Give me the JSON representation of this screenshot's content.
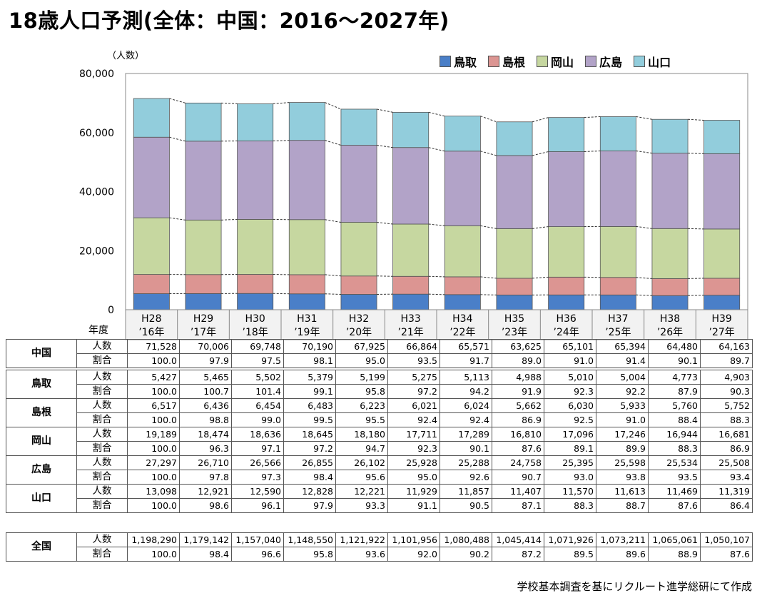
{
  "title": "18歳人口予測(全体：中国：2016～2027年)",
  "unit_label": "（人数）",
  "year_label": "年度",
  "row_kinds": [
    "人数",
    "割合"
  ],
  "source": "学校基本調査を基にリクルート進学総研にて作成",
  "colors": {
    "鳥取": "#4a7fc8",
    "島根": "#dc9592",
    "岡山": "#c6d7a0",
    "広島": "#b2a3c8",
    "山口": "#92cddc"
  },
  "chart_data": {
    "type": "bar",
    "stacked": true,
    "ylim": [
      0,
      80000
    ],
    "yticks": [
      "0",
      "20,000",
      "40,000",
      "60,000",
      "80,000"
    ],
    "legend_position": "top-right",
    "categories": [
      "H28\n'16年",
      "H29\n'17年",
      "H30\n'18年",
      "H31\n'19年",
      "H32\n'20年",
      "H33\n'21年",
      "H34\n'22年",
      "H35\n'23年",
      "H36\n'24年",
      "H37\n'25年",
      "H38\n'26年",
      "H39\n'27年"
    ],
    "category_top": [
      "H28",
      "H29",
      "H30",
      "H31",
      "H32",
      "H33",
      "H34",
      "H35",
      "H36",
      "H37",
      "H38",
      "H39"
    ],
    "category_bottom": [
      "’16年",
      "’17年",
      "’18年",
      "’19年",
      "’20年",
      "’21年",
      "’22年",
      "’23年",
      "’24年",
      "’25年",
      "’26年",
      "’27年"
    ],
    "series": [
      {
        "name": "鳥取",
        "values": [
          5427,
          5465,
          5502,
          5379,
          5199,
          5275,
          5113,
          4988,
          5010,
          5004,
          4773,
          4903
        ]
      },
      {
        "name": "島根",
        "values": [
          6517,
          6436,
          6454,
          6483,
          6223,
          6021,
          6024,
          5662,
          6030,
          5933,
          5760,
          5752
        ]
      },
      {
        "name": "岡山",
        "values": [
          19189,
          18474,
          18636,
          18645,
          18180,
          17711,
          17289,
          16810,
          17096,
          17246,
          16944,
          16681
        ]
      },
      {
        "name": "広島",
        "values": [
          27297,
          26710,
          26566,
          26855,
          26102,
          25928,
          25288,
          24758,
          25395,
          25598,
          25534,
          25508
        ]
      },
      {
        "name": "山口",
        "values": [
          13098,
          12921,
          12590,
          12828,
          12221,
          11929,
          11857,
          11407,
          11570,
          11613,
          11469,
          11319
        ]
      }
    ]
  },
  "table": [
    {
      "region": "中国",
      "counts": [
        "71,528",
        "70,006",
        "69,748",
        "70,190",
        "67,925",
        "66,864",
        "65,571",
        "63,625",
        "65,101",
        "65,394",
        "64,480",
        "64,163"
      ],
      "ratios": [
        "100.0",
        "97.9",
        "97.5",
        "98.1",
        "95.0",
        "93.5",
        "91.7",
        "89.0",
        "91.0",
        "91.4",
        "90.1",
        "89.7"
      ]
    },
    {
      "region": "鳥取",
      "counts": [
        "5,427",
        "5,465",
        "5,502",
        "5,379",
        "5,199",
        "5,275",
        "5,113",
        "4,988",
        "5,010",
        "5,004",
        "4,773",
        "4,903"
      ],
      "ratios": [
        "100.0",
        "100.7",
        "101.4",
        "99.1",
        "95.8",
        "97.2",
        "94.2",
        "91.9",
        "92.3",
        "92.2",
        "87.9",
        "90.3"
      ]
    },
    {
      "region": "島根",
      "counts": [
        "6,517",
        "6,436",
        "6,454",
        "6,483",
        "6,223",
        "6,021",
        "6,024",
        "5,662",
        "6,030",
        "5,933",
        "5,760",
        "5,752"
      ],
      "ratios": [
        "100.0",
        "98.8",
        "99.0",
        "99.5",
        "95.5",
        "92.4",
        "92.4",
        "86.9",
        "92.5",
        "91.0",
        "88.4",
        "88.3"
      ]
    },
    {
      "region": "岡山",
      "counts": [
        "19,189",
        "18,474",
        "18,636",
        "18,645",
        "18,180",
        "17,711",
        "17,289",
        "16,810",
        "17,096",
        "17,246",
        "16,944",
        "16,681"
      ],
      "ratios": [
        "100.0",
        "96.3",
        "97.1",
        "97.2",
        "94.7",
        "92.3",
        "90.1",
        "87.6",
        "89.1",
        "89.9",
        "88.3",
        "86.9"
      ]
    },
    {
      "region": "広島",
      "counts": [
        "27,297",
        "26,710",
        "26,566",
        "26,855",
        "26,102",
        "25,928",
        "25,288",
        "24,758",
        "25,395",
        "25,598",
        "25,534",
        "25,508"
      ],
      "ratios": [
        "100.0",
        "97.8",
        "97.3",
        "98.4",
        "95.6",
        "95.0",
        "92.6",
        "90.7",
        "93.0",
        "93.8",
        "93.5",
        "93.4"
      ]
    },
    {
      "region": "山口",
      "counts": [
        "13,098",
        "12,921",
        "12,590",
        "12,828",
        "12,221",
        "11,929",
        "11,857",
        "11,407",
        "11,570",
        "11,613",
        "11,469",
        "11,319"
      ],
      "ratios": [
        "100.0",
        "98.6",
        "96.1",
        "97.9",
        "93.3",
        "91.1",
        "90.5",
        "87.1",
        "88.3",
        "88.7",
        "87.6",
        "86.4"
      ]
    },
    {
      "region": "全国",
      "counts": [
        "1,198,290",
        "1,179,142",
        "1,157,040",
        "1,148,550",
        "1,121,922",
        "1,101,956",
        "1,080,488",
        "1,045,414",
        "1,071,926",
        "1,073,211",
        "1,065,061",
        "1,050,107"
      ],
      "ratios": [
        "100.0",
        "98.4",
        "96.6",
        "95.8",
        "93.6",
        "92.0",
        "90.2",
        "87.2",
        "89.5",
        "89.6",
        "88.9",
        "87.6"
      ]
    }
  ]
}
